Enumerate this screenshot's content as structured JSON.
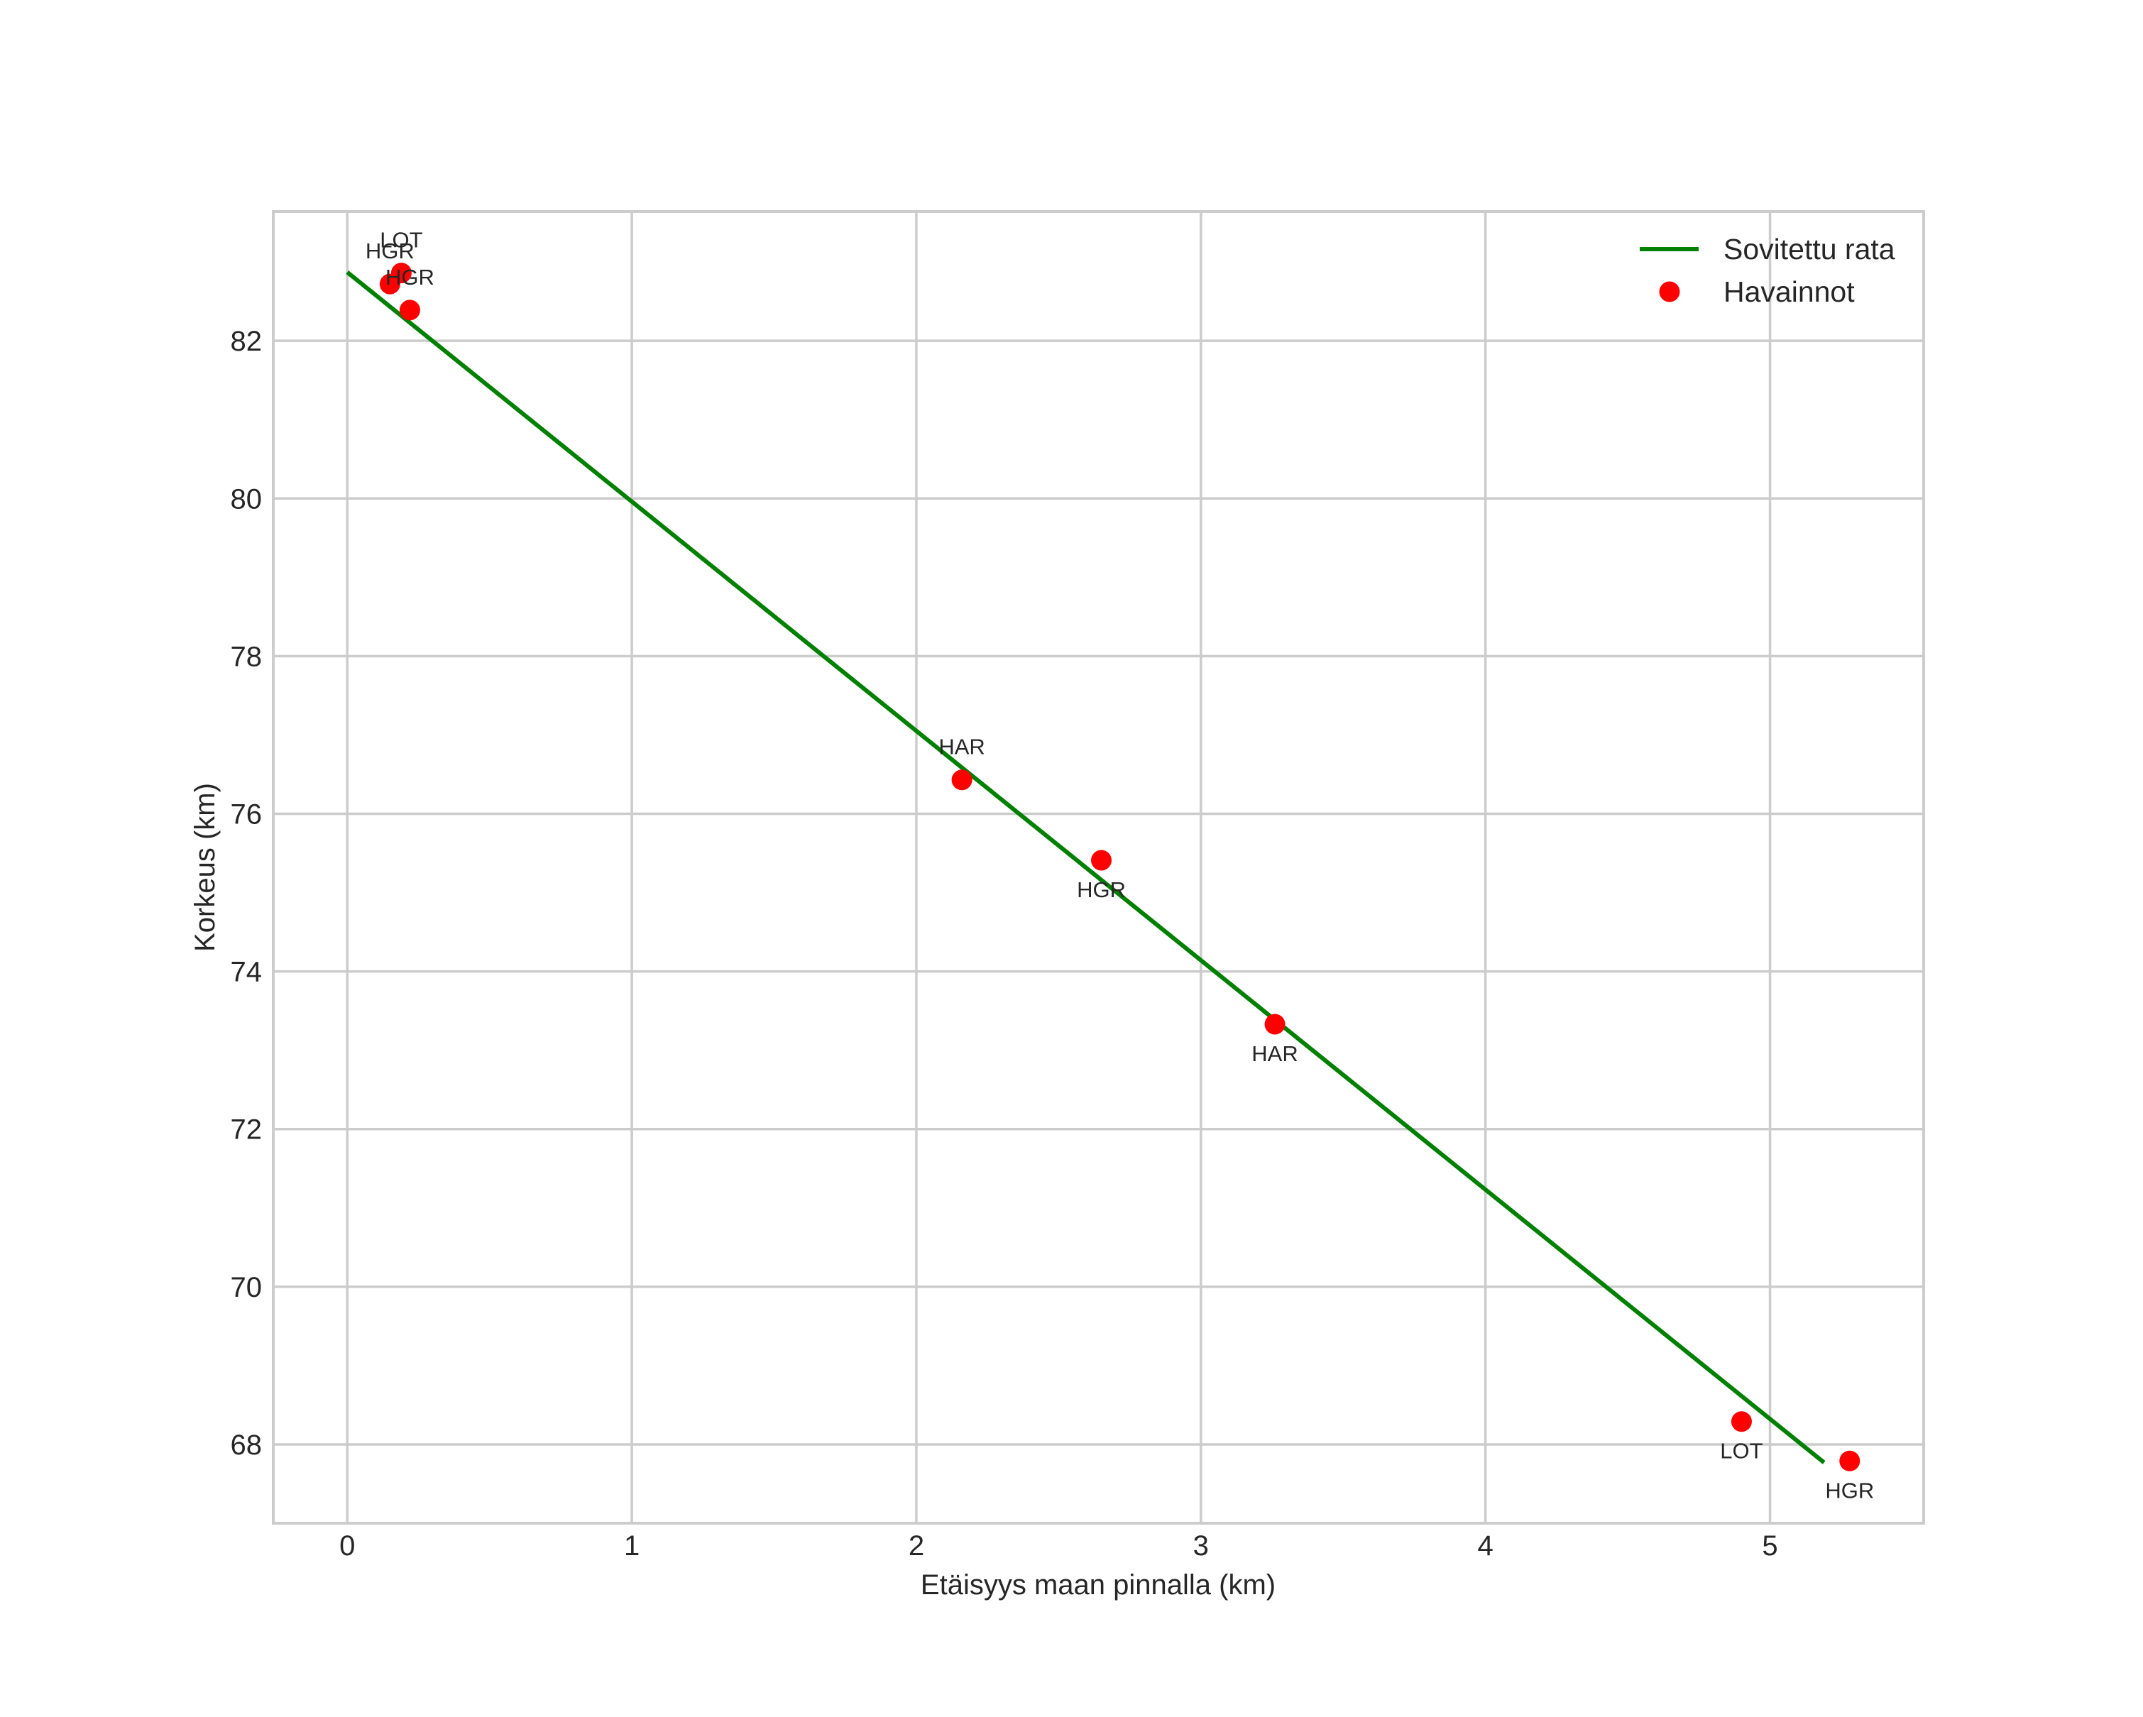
{
  "chart_data": {
    "type": "scatter",
    "title": "",
    "xlabel": "Etäisyys maan pinnalla (km)",
    "ylabel": "Korkeus (km)",
    "xlim": [
      -0.26,
      5.54
    ],
    "ylim": [
      67.0,
      83.64
    ],
    "xticks": [
      0,
      1,
      2,
      3,
      4,
      5
    ],
    "xtick_labels": [
      "0",
      "1",
      "2",
      "3",
      "4",
      "5"
    ],
    "yticks": [
      68,
      70,
      72,
      74,
      76,
      78,
      80,
      82
    ],
    "ytick_labels": [
      "68",
      "70",
      "72",
      "74",
      "76",
      "78",
      "80",
      "82"
    ],
    "grid": true,
    "legend_position": "upper right",
    "series": [
      {
        "name": "Sovitettu rata",
        "type": "line",
        "color": "#008000",
        "x": [
          0.0,
          5.19
        ],
        "y": [
          82.87,
          67.77
        ]
      },
      {
        "name": "Havainnot",
        "type": "scatter",
        "color": "#ff0000",
        "points": [
          {
            "x": 0.19,
            "y": 82.86,
            "label": "LOT",
            "label_pos": "above"
          },
          {
            "x": 0.15,
            "y": 82.72,
            "label": "HGR",
            "label_pos": "above"
          },
          {
            "x": 0.22,
            "y": 82.39,
            "label": "HGR",
            "label_pos": "above"
          },
          {
            "x": 2.16,
            "y": 76.43,
            "label": "HAR",
            "label_pos": "above"
          },
          {
            "x": 2.65,
            "y": 75.41,
            "label": "HGR",
            "label_pos": "below"
          },
          {
            "x": 3.26,
            "y": 73.33,
            "label": "HAR",
            "label_pos": "below"
          },
          {
            "x": 4.9,
            "y": 68.29,
            "label": "LOT",
            "label_pos": "below"
          },
          {
            "x": 5.28,
            "y": 67.79,
            "label": "HGR",
            "label_pos": "below"
          }
        ]
      }
    ]
  },
  "legend": {
    "items": [
      {
        "label": "Sovitettu rata",
        "icon": "line-swatch-icon",
        "color": "#008000"
      },
      {
        "label": "Havainnot",
        "icon": "dot-swatch-icon",
        "color": "#ff0000"
      }
    ]
  },
  "colors": {
    "grid": "#cccccc",
    "text": "#262626",
    "fit_line": "#008000",
    "observations": "#ff0000"
  }
}
